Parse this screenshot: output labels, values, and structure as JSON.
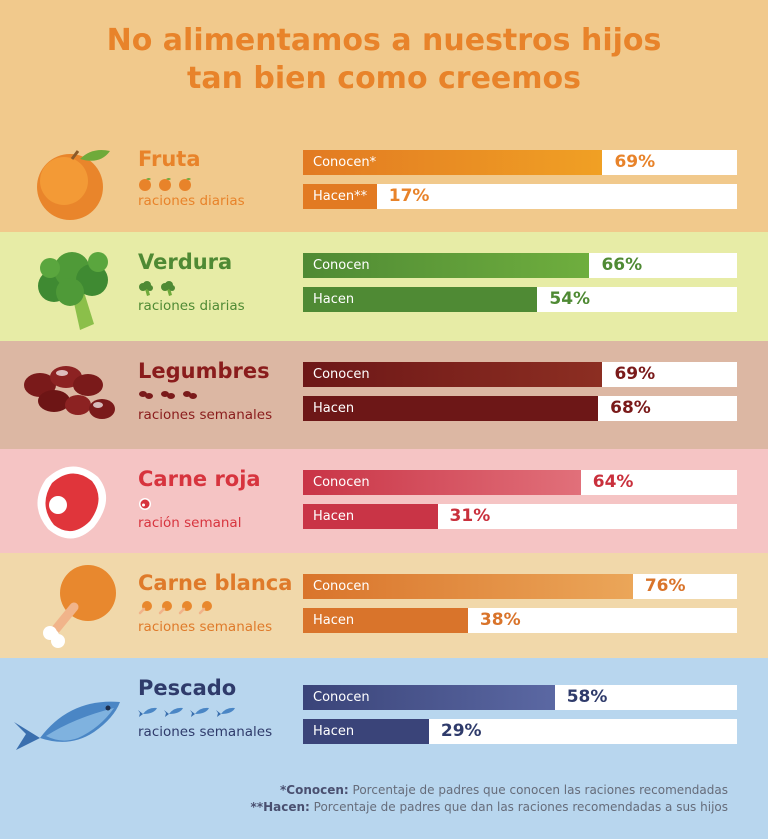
{
  "title_lines": [
    "No alimentamos a nuestros hijos",
    "tan bien como creemos"
  ],
  "chart_data": {
    "type": "bar",
    "orientation": "horizontal",
    "xlim": [
      0,
      100
    ],
    "unit": "%",
    "categories": [
      "Fruta",
      "Verdura",
      "Legumbres",
      "Carne roja",
      "Carne blanca",
      "Pescado"
    ],
    "series": [
      {
        "name": "Conocen",
        "values": [
          69,
          66,
          69,
          64,
          76,
          58
        ]
      },
      {
        "name": "Hacen",
        "values": [
          17,
          54,
          68,
          31,
          38,
          29
        ]
      }
    ]
  },
  "categories": [
    {
      "name": "Fruta",
      "portion": "raciones diarias",
      "icon": "orange-icon",
      "ration_icon": "orange-icon",
      "ration_count": 3,
      "bg": "#f1c98c",
      "name_color": "#e8832a",
      "portion_color": "#e8832a",
      "bar_from": "#e27a22",
      "bar_to": "#f0a024",
      "value_color": "#e8832a",
      "conocen_label": "Conocen*",
      "hacen_label": "Hacen**",
      "conocen_value": "69%",
      "hacen_value": "17%",
      "conocen": 69,
      "hacen": 17
    },
    {
      "name": "Verdura",
      "portion": "raciones diarias",
      "icon": "broccoli-icon",
      "ration_icon": "broccoli-icon",
      "ration_count": 2,
      "bg": "#e7eca6",
      "name_color": "#4f8a34",
      "portion_color": "#4f8a34",
      "bar_from": "#4f8a34",
      "bar_to": "#6fae3e",
      "value_color": "#4f8a34",
      "conocen_label": "Conocen",
      "hacen_label": "Hacen",
      "conocen_value": "66%",
      "hacen_value": "54%",
      "conocen": 66,
      "hacen": 54
    },
    {
      "name": "Legumbres",
      "portion": "raciones semanales",
      "icon": "beans-icon",
      "ration_icon": "beans-icon",
      "ration_count": 3,
      "bg": "#dcb7a3",
      "name_color": "#8a1c1c",
      "portion_color": "#8a1c1c",
      "bar_from": "#6d1717",
      "bar_to": "#8c2e22",
      "value_color": "#7a1a1a",
      "conocen_label": "Conocen",
      "hacen_label": "Hacen",
      "conocen_value": "69%",
      "hacen_value": "68%",
      "conocen": 69,
      "hacen": 68
    },
    {
      "name": "Carne roja",
      "portion": "ración semanal",
      "icon": "steak-icon",
      "ration_icon": "steak-icon",
      "ration_count": 1,
      "bg": "#f5c4c4",
      "name_color": "#d7343e",
      "portion_color": "#d7343e",
      "bar_from": "#c93446",
      "bar_to": "#e1707a",
      "value_color": "#c9303c",
      "conocen_label": "Conocen",
      "hacen_label": "Hacen",
      "conocen_value": "64%",
      "hacen_value": "31%",
      "conocen": 64,
      "hacen": 31
    },
    {
      "name": "Carne blanca",
      "portion": "raciones semanales",
      "icon": "chicken-leg-icon",
      "ration_icon": "chicken-leg-icon",
      "ration_count": 4,
      "bg": "#f1d8aa",
      "name_color": "#df7a2a",
      "portion_color": "#df7a2a",
      "bar_from": "#d9742b",
      "bar_to": "#eba659",
      "value_color": "#d9742b",
      "conocen_label": "Conocen",
      "hacen_label": "Hacen",
      "conocen_value": "76%",
      "hacen_value": "38%",
      "conocen": 76,
      "hacen": 38
    },
    {
      "name": "Pescado",
      "portion": "raciones semanales",
      "icon": "fish-icon",
      "ration_icon": "fish-icon",
      "ration_count": 4,
      "bg": "#b8d6ee",
      "name_color": "#2f3b6b",
      "portion_color": "#2f3b6b",
      "bar_from": "#3a4479",
      "bar_to": "#5b68a3",
      "value_color": "#2f3b6b",
      "conocen_label": "Conocen",
      "hacen_label": "Hacen",
      "conocen_value": "58%",
      "hacen_value": "29%",
      "conocen": 58,
      "hacen": 29
    }
  ],
  "footnotes": [
    {
      "key": "*Conocen:",
      "text": " Porcentaje de padres que conocen las raciones recomendadas"
    },
    {
      "key": "**Hacen:",
      "text": " Porcentaje de padres que dan las raciones recomendadas a sus hijos"
    }
  ]
}
